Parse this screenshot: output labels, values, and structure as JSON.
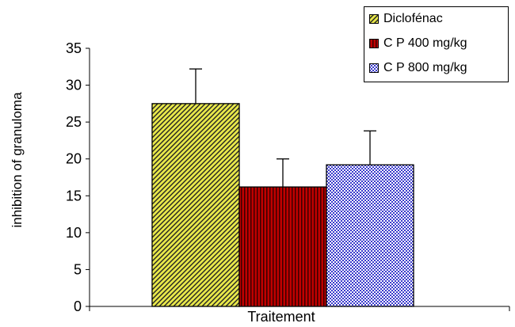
{
  "chart_data": {
    "type": "bar",
    "title": "",
    "xlabel": "Traitement",
    "ylabel": "inhibition  of granuloma",
    "categories": [
      "Traitement"
    ],
    "ylim": [
      0,
      35
    ],
    "yticks": [
      0,
      5,
      10,
      15,
      20,
      25,
      30,
      35
    ],
    "grid": false,
    "legend_position": "top-right",
    "series": [
      {
        "name": "Diclofénac",
        "values": [
          27.5
        ],
        "error": [
          4.7
        ],
        "color": "#e8e84a",
        "pattern": "diagonal-hatch"
      },
      {
        "name": "C P 400 mg/kg",
        "values": [
          16.2
        ],
        "error": [
          3.8
        ],
        "color": "#b00000",
        "pattern": "vertical-stripes"
      },
      {
        "name": "C P 800 mg/kg",
        "values": [
          19.2
        ],
        "error": [
          4.6
        ],
        "color": "#3a3acc",
        "pattern": "checkerboard"
      }
    ]
  }
}
